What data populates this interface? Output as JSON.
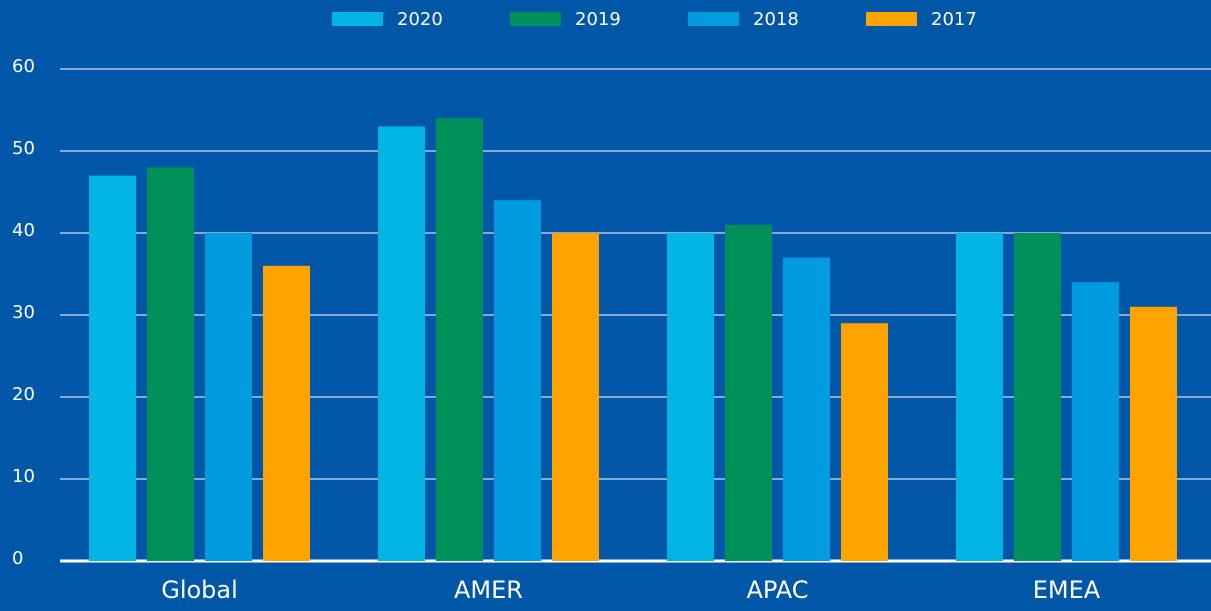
{
  "chart_data": {
    "type": "bar",
    "categories": [
      "Global",
      "AMER",
      "APAC",
      "EMEA"
    ],
    "series": [
      {
        "name": "2020",
        "color": "#00b4e6",
        "values": [
          47,
          53,
          40,
          40
        ]
      },
      {
        "name": "2019",
        "color": "#00915a",
        "values": [
          48,
          54,
          41,
          40
        ]
      },
      {
        "name": "2018",
        "color": "#009be0",
        "values": [
          40,
          44,
          37,
          34
        ]
      },
      {
        "name": "2017",
        "color": "#ffa300",
        "values": [
          36,
          40,
          29,
          31
        ]
      }
    ],
    "ylim": [
      0,
      60
    ],
    "yticks": [
      0,
      10,
      20,
      30,
      40,
      50,
      60
    ],
    "grid": true,
    "legend": "top"
  }
}
